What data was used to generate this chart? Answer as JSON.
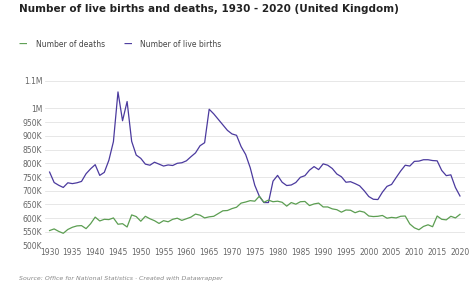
{
  "title": "Number of live births and deaths, 1930 - 2020 (United Kingdom)",
  "source": "Source: Office for National Statistics · Created with Datawrapper",
  "legend": [
    {
      "label": "Number of deaths",
      "color": "#5c9e52"
    },
    {
      "label": "Number of live births",
      "color": "#4b3a9e"
    }
  ],
  "years": [
    1930,
    1931,
    1932,
    1933,
    1934,
    1935,
    1936,
    1937,
    1938,
    1939,
    1940,
    1941,
    1942,
    1943,
    1944,
    1945,
    1946,
    1947,
    1948,
    1949,
    1950,
    1951,
    1952,
    1953,
    1954,
    1955,
    1956,
    1957,
    1958,
    1959,
    1960,
    1961,
    1962,
    1963,
    1964,
    1965,
    1966,
    1967,
    1968,
    1969,
    1970,
    1971,
    1972,
    1973,
    1974,
    1975,
    1976,
    1977,
    1978,
    1979,
    1980,
    1981,
    1982,
    1983,
    1984,
    1985,
    1986,
    1987,
    1988,
    1989,
    1990,
    1991,
    1992,
    1993,
    1994,
    1995,
    1996,
    1997,
    1998,
    1999,
    2000,
    2001,
    2002,
    2003,
    2004,
    2005,
    2006,
    2007,
    2008,
    2009,
    2010,
    2011,
    2012,
    2013,
    2014,
    2015,
    2016,
    2017,
    2018,
    2019,
    2020
  ],
  "deaths": [
    555000,
    561000,
    552000,
    545000,
    559000,
    567000,
    572000,
    573000,
    562000,
    580000,
    604000,
    590000,
    596000,
    595000,
    601000,
    578000,
    580000,
    568000,
    612000,
    606000,
    589000,
    607000,
    598000,
    591000,
    581000,
    591000,
    587000,
    596000,
    600000,
    592000,
    598000,
    604000,
    615000,
    611000,
    601000,
    605000,
    607000,
    617000,
    627000,
    628000,
    635000,
    640000,
    655000,
    659000,
    664000,
    662000,
    680000,
    658000,
    666000,
    660000,
    662000,
    658000,
    644000,
    657000,
    651000,
    660000,
    661000,
    646000,
    652000,
    655000,
    641000,
    641000,
    634000,
    631000,
    622000,
    630000,
    629000,
    620000,
    626000,
    622000,
    608000,
    606000,
    607000,
    610000,
    600000,
    603000,
    601000,
    607000,
    608000,
    579000,
    565000,
    558000,
    570000,
    576000,
    569000,
    608000,
    596000,
    594000,
    607000,
    601000,
    614000
  ],
  "births": [
    768000,
    730000,
    720000,
    712000,
    729000,
    726000,
    729000,
    734000,
    762000,
    780000,
    795000,
    756000,
    767000,
    811000,
    879000,
    1060000,
    955000,
    1025000,
    880000,
    830000,
    818000,
    797000,
    793000,
    804000,
    797000,
    790000,
    794000,
    792000,
    800000,
    802000,
    809000,
    824000,
    838000,
    864000,
    875000,
    997000,
    980000,
    960000,
    940000,
    920000,
    907000,
    902000,
    861000,
    832000,
    784000,
    720000,
    680000,
    657000,
    657000,
    735000,
    756000,
    731000,
    719000,
    721000,
    730000,
    749000,
    755000,
    775000,
    788000,
    777000,
    798000,
    793000,
    781000,
    761000,
    751000,
    731000,
    733000,
    726000,
    718000,
    700000,
    679000,
    669000,
    668000,
    695000,
    716000,
    723000,
    748000,
    772000,
    793000,
    790000,
    807000,
    808000,
    813000,
    813000,
    810000,
    809000,
    774000,
    755000,
    758000,
    712000,
    681000
  ],
  "ylim": [
    500000,
    1100000
  ],
  "ytick_vals": [
    500000,
    550000,
    600000,
    650000,
    700000,
    750000,
    800000,
    850000,
    900000,
    950000,
    1000000,
    1100000
  ],
  "ytick_labels": [
    "500K",
    "550K",
    "600K",
    "650K",
    "700K",
    "750K",
    "800K",
    "850K",
    "900K",
    "950K",
    "1M",
    "1.1M"
  ],
  "xticks": [
    1930,
    1935,
    1940,
    1945,
    1950,
    1955,
    1960,
    1965,
    1970,
    1975,
    1980,
    1985,
    1990,
    1995,
    2000,
    2005,
    2010,
    2015,
    2020
  ],
  "background_color": "#ffffff",
  "grid_color": "#dddddd",
  "deaths_color": "#5c9e52",
  "births_color": "#4b3a9e",
  "title_fontsize": 7.5,
  "label_fontsize": 5.5,
  "tick_fontsize": 5.5,
  "source_fontsize": 4.5
}
